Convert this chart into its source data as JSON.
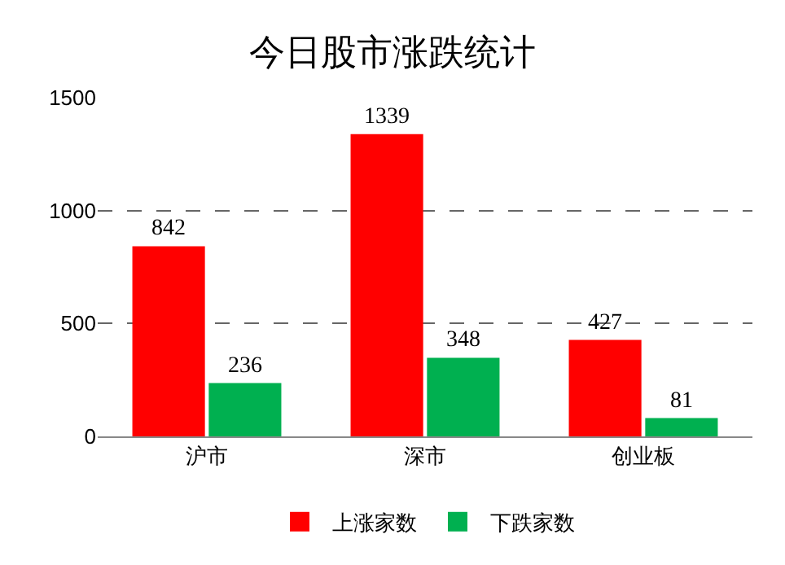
{
  "chart_data": {
    "type": "bar",
    "title": "今日股市涨跌统计",
    "categories": [
      "沪市",
      "深市",
      "创业板"
    ],
    "series": [
      {
        "name": "上涨家数",
        "color": "#ff0000",
        "values": [
          842,
          1339,
          427
        ]
      },
      {
        "name": "下跌家数",
        "color": "#00b050",
        "values": [
          236,
          348,
          81
        ]
      }
    ],
    "ylim": [
      0,
      1500
    ],
    "yticks": [
      0,
      500,
      1000,
      1500
    ],
    "grid": "y",
    "legend": "bottom",
    "data_labels": true
  }
}
